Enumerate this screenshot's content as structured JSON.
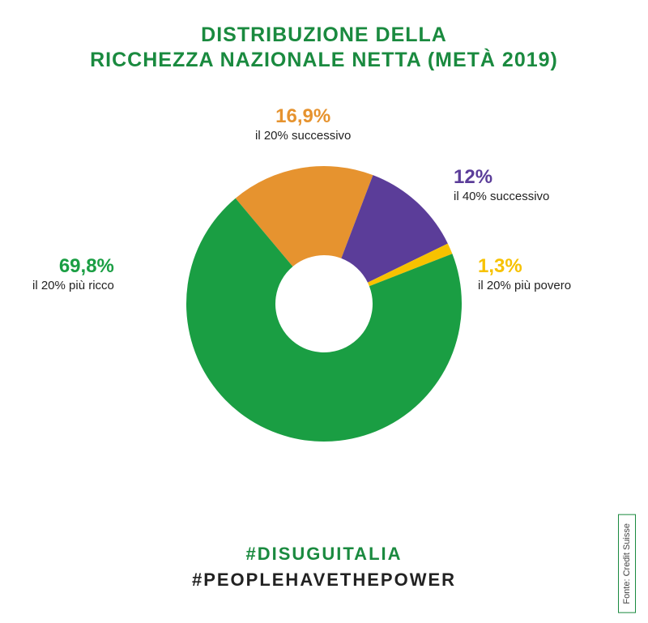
{
  "title_line1": "DISTRIBUZIONE DELLA",
  "title_line2": "RICCHEZZA NAZIONALE NETTA (METÀ 2019)",
  "chart": {
    "type": "donut",
    "background_color": "#ffffff",
    "inner_radius": 60,
    "outer_radius": 170,
    "start_angle_deg": -40,
    "slices": [
      {
        "value": 16.9,
        "label_pct": "16,9%",
        "label_desc": "il 20% successivo",
        "color": "#e6932f",
        "label_style": "text-align:center; left:315px; top:5px;"
      },
      {
        "value": 12.0,
        "label_pct": "12%",
        "label_desc": "il 40% successivo",
        "color": "#5b3d99",
        "label_style": "text-align:left; left:560px; top:80px;"
      },
      {
        "value": 1.3,
        "label_pct": "1,3%",
        "label_desc": "il 20% più povero",
        "color": "#f7c200",
        "label_style": "text-align:left; left:590px; top:190px;"
      },
      {
        "value": 69.8,
        "label_pct": "69,8%",
        "label_desc": "il 20% più ricco",
        "color": "#1a9e43",
        "label_style": "text-align:right; left:40px; top:190px;"
      }
    ]
  },
  "hashtag1": "#DISUGUITALIA",
  "hashtag2": "#PEOPLEHAVETHEPOWER",
  "source": "Fonte: Credit Suisse",
  "title_color": "#1a8a3f",
  "title_fontsize": 25,
  "hashtag_fontsize": 22,
  "pct_fontsize": 24,
  "desc_fontsize": 15
}
